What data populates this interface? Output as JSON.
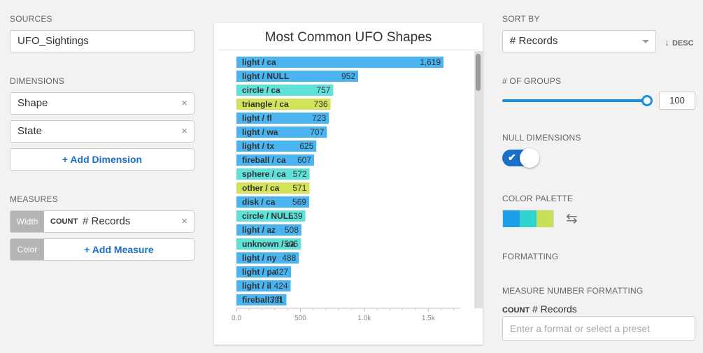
{
  "left": {
    "sources_label": "SOURCES",
    "source_value": "UFO_Sightings",
    "dimensions_label": "DIMENSIONS",
    "dimensions": [
      "Shape",
      "State"
    ],
    "add_dimension": "+ Add Dimension",
    "measures_label": "MEASURES",
    "measure_width_pill": "Width",
    "measure_agg": "COUNT",
    "measure_field": "# Records",
    "measure_color_pill": "Color",
    "add_measure": "+ Add Measure",
    "clear_glyph": "×"
  },
  "chart_data": {
    "type": "bar",
    "title": "Most Common UFO Shapes",
    "categories": [
      "light / ca",
      "light / NULL",
      "circle / ca",
      "triangle / ca",
      "light / fl",
      "light / wa",
      "light / tx",
      "fireball / ca",
      "sphere / ca",
      "other / ca",
      "disk / ca",
      "circle / NULL",
      "light / az",
      "unknown / ca",
      "light / ny",
      "light / pa",
      "light / il",
      "fireball / fl"
    ],
    "values": [
      1619,
      952,
      757,
      736,
      723,
      707,
      625,
      607,
      572,
      571,
      569,
      539,
      508,
      505,
      488,
      427,
      424,
      391
    ],
    "value_labels": [
      "1,619",
      "952",
      "757",
      "736",
      "723",
      "707",
      "625",
      "607",
      "572",
      "571",
      "569",
      "539",
      "508",
      "505",
      "488",
      "427",
      "424",
      "391"
    ],
    "colors": [
      "#4ab4f0",
      "#4ab4f0",
      "#5fe0d8",
      "#d4e25a",
      "#4ab4f0",
      "#4ab4f0",
      "#4ab4f0",
      "#4ab4f0",
      "#5fe0d8",
      "#d4e25a",
      "#4ab4f0",
      "#5fe0d8",
      "#4ab4f0",
      "#5fe0d8",
      "#4ab4f0",
      "#4ab4f0",
      "#4ab4f0",
      "#4ab4f0"
    ],
    "xlim": [
      0,
      1750
    ],
    "xticks": [
      0,
      500,
      1000,
      1500
    ],
    "xtick_labels": [
      "0.0",
      "500",
      "1.0k",
      "1.5k"
    ],
    "orientation": "horizontal",
    "grid": false
  },
  "right": {
    "sort_label": "SORT BY",
    "sort_value": "# Records",
    "sort_dir": "DESC",
    "groups_label": "# OF GROUPS",
    "groups_value": "100",
    "groups_fraction": 1.0,
    "null_label": "NULL DIMENSIONS",
    "null_on": true,
    "palette_label": "COLOR PALETTE",
    "palette": [
      "#1ea0e8",
      "#32d4d0",
      "#c7e05a"
    ],
    "formatting_label": "FORMATTING",
    "measure_fmt_label": "MEASURE NUMBER FORMATTING",
    "fmt_agg": "COUNT",
    "fmt_field": "# Records",
    "fmt_placeholder": "Enter a format or select a preset"
  }
}
